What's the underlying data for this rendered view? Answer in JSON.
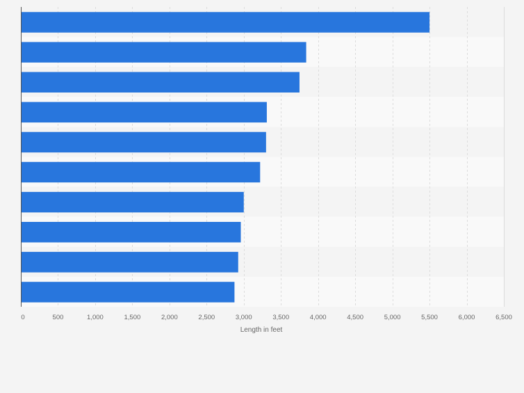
{
  "chart_data": {
    "type": "bar",
    "orientation": "horizontal",
    "title": "",
    "xlabel": "Length in feet",
    "ylabel": "",
    "xlim": [
      0,
      6500
    ],
    "ticks": [
      "0",
      "500",
      "1,000",
      "1,500",
      "2,000",
      "2,500",
      "3,000",
      "3,500",
      "4,000",
      "4,500",
      "5,000",
      "5,500",
      "6,000",
      "6,500"
    ],
    "tick_values": [
      0,
      500,
      1000,
      1500,
      2000,
      2500,
      3000,
      3500,
      4000,
      4500,
      5000,
      5500,
      6000,
      6500
    ],
    "categories": [
      "",
      "",
      "",
      "",
      "",
      "",
      "",
      "",
      "",
      ""
    ],
    "values": [
      5500,
      3840,
      3750,
      3310,
      3300,
      3220,
      3000,
      2960,
      2925,
      2875
    ],
    "grid": true,
    "colors": {
      "bar": "#2876dd",
      "band_dark": "#f4f4f4",
      "band_light": "#f9f9f9",
      "grid": "#dcdcdc",
      "axis": "#555555",
      "tick_text": "#666666"
    }
  }
}
